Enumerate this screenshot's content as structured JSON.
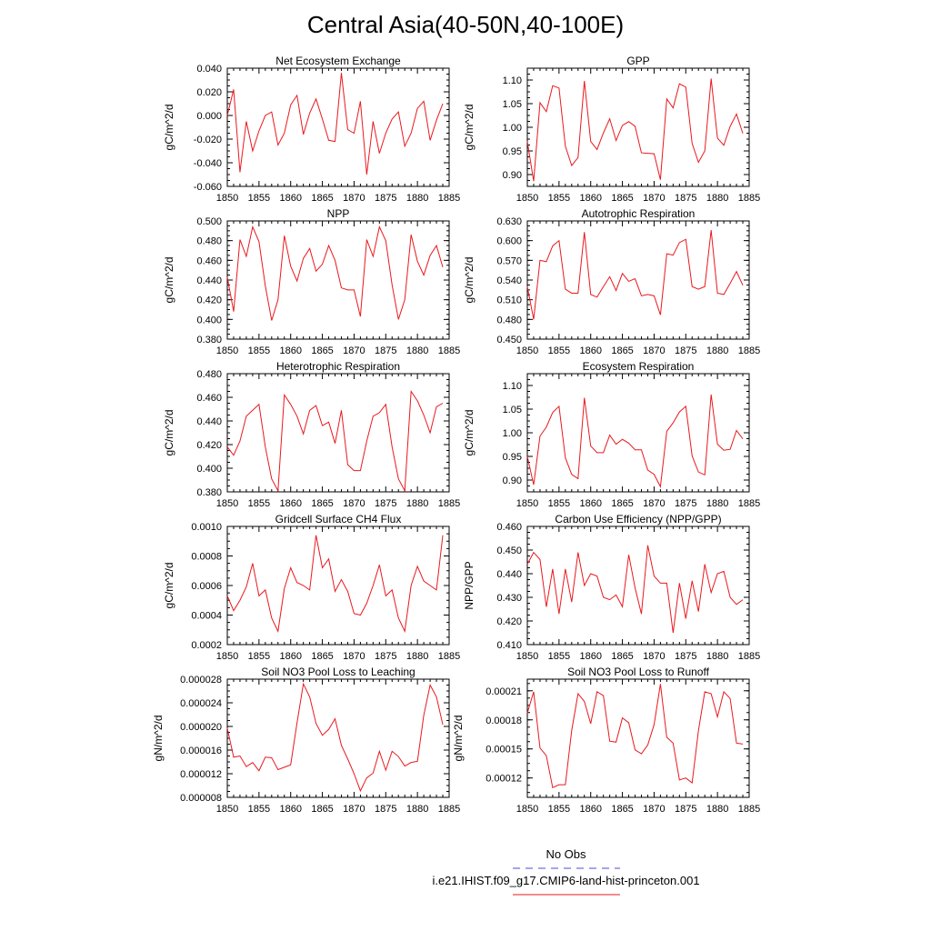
{
  "figure": {
    "title": "Central Asia(40-50N,40-100E)",
    "line_color": "#e8191e",
    "obs_color": "#4b4be0"
  },
  "legend": {
    "obs_label": "No Obs",
    "model_label": "i.e21.IHIST.f09_g17.CMIP6-land-hist-princeton.001"
  },
  "chart_data": [
    {
      "type": "line",
      "title": "Net Ecosystem Exchange",
      "ylabel": "gC/m^2/d",
      "xlabel": "",
      "xlim": [
        1850,
        1885
      ],
      "ylim": [
        -0.06,
        0.04
      ],
      "yticks": [
        -0.06,
        -0.04,
        -0.02,
        0.0,
        0.02,
        0.04
      ],
      "ytick_labels": [
        "-0.060",
        "-0.040",
        "-0.020",
        "0.000",
        "0.020",
        "0.040"
      ],
      "xticks": [
        1850,
        1855,
        1860,
        1865,
        1870,
        1875,
        1880,
        1885
      ],
      "x": [
        1850,
        1851,
        1852,
        1853,
        1854,
        1855,
        1856,
        1857,
        1858,
        1859,
        1860,
        1861,
        1862,
        1863,
        1864,
        1865,
        1866,
        1867,
        1868,
        1869,
        1870,
        1871,
        1872,
        1873,
        1874,
        1875,
        1876,
        1877,
        1878,
        1879,
        1880,
        1881,
        1882,
        1883,
        1884
      ],
      "series": [
        {
          "values": [
            0.0,
            0.022,
            -0.048,
            -0.005,
            -0.03,
            -0.013,
            0.0,
            0.003,
            -0.025,
            -0.015,
            0.009,
            0.017,
            -0.016,
            0.002,
            0.014,
            -0.003,
            -0.021,
            -0.022,
            0.036,
            -0.012,
            -0.015,
            0.012,
            -0.05,
            -0.005,
            -0.032,
            -0.015,
            -0.003,
            0.003,
            -0.026,
            -0.015,
            0.006,
            0.012,
            -0.021,
            -0.004,
            0.01
          ]
        }
      ]
    },
    {
      "type": "line",
      "title": "GPP",
      "ylabel": "gC/m^2/d",
      "xlabel": "",
      "xlim": [
        1850,
        1885
      ],
      "ylim": [
        0.875,
        1.125
      ],
      "yticks": [
        0.9,
        0.95,
        1.0,
        1.05,
        1.1
      ],
      "ytick_labels": [
        "0.90",
        "0.95",
        "1.00",
        "1.05",
        "1.10"
      ],
      "xticks": [
        1850,
        1855,
        1860,
        1865,
        1870,
        1875,
        1880,
        1885
      ],
      "x": [
        1850,
        1851,
        1852,
        1853,
        1854,
        1855,
        1856,
        1857,
        1858,
        1859,
        1860,
        1861,
        1862,
        1863,
        1864,
        1865,
        1866,
        1867,
        1868,
        1869,
        1870,
        1871,
        1872,
        1873,
        1874,
        1875,
        1876,
        1877,
        1878,
        1879,
        1880,
        1881,
        1882,
        1883,
        1884
      ],
      "series": [
        {
          "values": [
            0.97,
            0.886,
            1.052,
            1.033,
            1.088,
            1.083,
            0.96,
            0.919,
            0.936,
            1.098,
            0.97,
            0.953,
            0.988,
            1.018,
            0.972,
            1.004,
            1.012,
            1.002,
            0.946,
            0.945,
            0.944,
            0.889,
            1.06,
            1.041,
            1.092,
            1.085,
            0.966,
            0.926,
            0.95,
            1.103,
            0.977,
            0.962,
            1.002,
            1.028,
            0.987
          ]
        }
      ]
    },
    {
      "type": "line",
      "title": "NPP",
      "ylabel": "gC/m^2/d",
      "xlabel": "",
      "xlim": [
        1850,
        1885
      ],
      "ylim": [
        0.38,
        0.5
      ],
      "yticks": [
        0.38,
        0.4,
        0.42,
        0.44,
        0.46,
        0.48,
        0.5
      ],
      "ytick_labels": [
        "0.380",
        "0.400",
        "0.420",
        "0.440",
        "0.460",
        "0.480",
        "0.500"
      ],
      "xticks": [
        1850,
        1855,
        1860,
        1865,
        1870,
        1875,
        1880,
        1885
      ],
      "x": [
        1850,
        1851,
        1852,
        1853,
        1854,
        1855,
        1856,
        1857,
        1858,
        1859,
        1860,
        1861,
        1862,
        1863,
        1864,
        1865,
        1866,
        1867,
        1868,
        1869,
        1870,
        1871,
        1872,
        1873,
        1874,
        1875,
        1876,
        1877,
        1878,
        1879,
        1880,
        1881,
        1882,
        1883,
        1884
      ],
      "series": [
        {
          "values": [
            0.443,
            0.408,
            0.481,
            0.464,
            0.494,
            0.479,
            0.434,
            0.399,
            0.42,
            0.485,
            0.454,
            0.439,
            0.462,
            0.472,
            0.449,
            0.456,
            0.475,
            0.46,
            0.432,
            0.43,
            0.43,
            0.403,
            0.481,
            0.464,
            0.494,
            0.48,
            0.435,
            0.4,
            0.42,
            0.486,
            0.459,
            0.445,
            0.465,
            0.475,
            0.453
          ]
        }
      ]
    },
    {
      "type": "line",
      "title": "Autotrophic Respiration",
      "ylabel": "gC/m^2/d",
      "xlabel": "",
      "xlim": [
        1850,
        1885
      ],
      "ylim": [
        0.45,
        0.63
      ],
      "yticks": [
        0.45,
        0.48,
        0.51,
        0.54,
        0.57,
        0.6,
        0.63
      ],
      "ytick_labels": [
        "0.450",
        "0.480",
        "0.510",
        "0.540",
        "0.570",
        "0.600",
        "0.630"
      ],
      "xticks": [
        1850,
        1855,
        1860,
        1865,
        1870,
        1875,
        1880,
        1885
      ],
      "x": [
        1850,
        1851,
        1852,
        1853,
        1854,
        1855,
        1856,
        1857,
        1858,
        1859,
        1860,
        1861,
        1862,
        1863,
        1864,
        1865,
        1866,
        1867,
        1868,
        1869,
        1870,
        1871,
        1872,
        1873,
        1874,
        1875,
        1876,
        1877,
        1878,
        1879,
        1880,
        1881,
        1882,
        1883,
        1884
      ],
      "series": [
        {
          "values": [
            0.53,
            0.48,
            0.57,
            0.568,
            0.592,
            0.6,
            0.526,
            0.52,
            0.52,
            0.613,
            0.518,
            0.514,
            0.53,
            0.545,
            0.524,
            0.55,
            0.538,
            0.542,
            0.516,
            0.518,
            0.516,
            0.487,
            0.58,
            0.578,
            0.597,
            0.602,
            0.53,
            0.526,
            0.53,
            0.616,
            0.52,
            0.518,
            0.535,
            0.553,
            0.532
          ]
        }
      ]
    },
    {
      "type": "line",
      "title": "Heterotrophic Respiration",
      "ylabel": "gC/m^2/d",
      "xlabel": "",
      "xlim": [
        1850,
        1885
      ],
      "ylim": [
        0.38,
        0.48
      ],
      "yticks": [
        0.38,
        0.4,
        0.42,
        0.44,
        0.46,
        0.48
      ],
      "ytick_labels": [
        "0.380",
        "0.400",
        "0.420",
        "0.440",
        "0.460",
        "0.480"
      ],
      "xticks": [
        1850,
        1855,
        1860,
        1865,
        1870,
        1875,
        1880,
        1885
      ],
      "x": [
        1850,
        1851,
        1852,
        1853,
        1854,
        1855,
        1856,
        1857,
        1858,
        1859,
        1860,
        1861,
        1862,
        1863,
        1864,
        1865,
        1866,
        1867,
        1868,
        1869,
        1870,
        1871,
        1872,
        1873,
        1874,
        1875,
        1876,
        1877,
        1878,
        1879,
        1880,
        1881,
        1882,
        1883,
        1884
      ],
      "series": [
        {
          "values": [
            0.418,
            0.411,
            0.423,
            0.444,
            0.449,
            0.454,
            0.418,
            0.391,
            0.381,
            0.462,
            0.454,
            0.444,
            0.429,
            0.449,
            0.453,
            0.436,
            0.439,
            0.421,
            0.449,
            0.403,
            0.398,
            0.398,
            0.423,
            0.444,
            0.447,
            0.454,
            0.418,
            0.391,
            0.381,
            0.465,
            0.457,
            0.445,
            0.43,
            0.452,
            0.455
          ]
        }
      ]
    },
    {
      "type": "line",
      "title": "Ecosystem Respiration",
      "ylabel": "gC/m^2/d",
      "xlabel": "",
      "xlim": [
        1850,
        1885
      ],
      "ylim": [
        0.875,
        1.125
      ],
      "yticks": [
        0.9,
        0.95,
        1.0,
        1.05,
        1.1
      ],
      "ytick_labels": [
        "0.90",
        "0.95",
        "1.00",
        "1.05",
        "1.10"
      ],
      "xticks": [
        1850,
        1855,
        1860,
        1865,
        1870,
        1875,
        1880,
        1885
      ],
      "x": [
        1850,
        1851,
        1852,
        1853,
        1854,
        1855,
        1856,
        1857,
        1858,
        1859,
        1860,
        1861,
        1862,
        1863,
        1864,
        1865,
        1866,
        1867,
        1868,
        1869,
        1870,
        1871,
        1872,
        1873,
        1874,
        1875,
        1876,
        1877,
        1878,
        1879,
        1880,
        1881,
        1882,
        1883,
        1884
      ],
      "series": [
        {
          "values": [
            0.95,
            0.89,
            0.993,
            1.012,
            1.043,
            1.056,
            0.947,
            0.912,
            0.903,
            1.074,
            0.972,
            0.958,
            0.958,
            0.995,
            0.976,
            0.986,
            0.978,
            0.964,
            0.964,
            0.921,
            0.912,
            0.886,
            1.003,
            1.021,
            1.044,
            1.056,
            0.951,
            0.917,
            0.911,
            1.081,
            0.976,
            0.963,
            0.965,
            1.005,
            0.987
          ]
        }
      ]
    },
    {
      "type": "line",
      "title": "Gridcell Surface CH4 Flux",
      "ylabel": "gC/m^2/d",
      "xlabel": "",
      "xlim": [
        1850,
        1885
      ],
      "ylim": [
        0.0002,
        0.001
      ],
      "yticks": [
        0.0002,
        0.0004,
        0.0006,
        0.0008,
        0.001
      ],
      "ytick_labels": [
        "0.0002",
        "0.0004",
        "0.0006",
        "0.0008",
        "0.0010"
      ],
      "xticks": [
        1850,
        1855,
        1860,
        1865,
        1870,
        1875,
        1880,
        1885
      ],
      "x": [
        1850,
        1851,
        1852,
        1853,
        1854,
        1855,
        1856,
        1857,
        1858,
        1859,
        1860,
        1861,
        1862,
        1863,
        1864,
        1865,
        1866,
        1867,
        1868,
        1869,
        1870,
        1871,
        1872,
        1873,
        1874,
        1875,
        1876,
        1877,
        1878,
        1879,
        1880,
        1881,
        1882,
        1883,
        1884
      ],
      "series": [
        {
          "values": [
            0.00053,
            0.00043,
            0.0005,
            0.00059,
            0.00075,
            0.00053,
            0.00057,
            0.00038,
            0.00029,
            0.00058,
            0.00072,
            0.00062,
            0.0006,
            0.00057,
            0.00094,
            0.00072,
            0.00078,
            0.00056,
            0.00064,
            0.00056,
            0.00041,
            0.0004,
            0.00048,
            0.0006,
            0.00074,
            0.00053,
            0.00057,
            0.00038,
            0.00029,
            0.0006,
            0.00073,
            0.00063,
            0.0006,
            0.00057,
            0.00094
          ]
        }
      ]
    },
    {
      "type": "line",
      "title": "Carbon Use Efficiency (NPP/GPP)",
      "ylabel": "NPP/GPP",
      "xlabel": "",
      "xlim": [
        1850,
        1885
      ],
      "ylim": [
        0.41,
        0.46
      ],
      "yticks": [
        0.41,
        0.42,
        0.43,
        0.44,
        0.45,
        0.46
      ],
      "ytick_labels": [
        "0.410",
        "0.420",
        "0.430",
        "0.440",
        "0.450",
        "0.460"
      ],
      "xticks": [
        1850,
        1855,
        1860,
        1865,
        1870,
        1875,
        1880,
        1885
      ],
      "x": [
        1850,
        1851,
        1852,
        1853,
        1854,
        1855,
        1856,
        1857,
        1858,
        1859,
        1860,
        1861,
        1862,
        1863,
        1864,
        1865,
        1866,
        1867,
        1868,
        1869,
        1870,
        1871,
        1872,
        1873,
        1874,
        1875,
        1876,
        1877,
        1878,
        1879,
        1880,
        1881,
        1882,
        1883,
        1884
      ],
      "series": [
        {
          "values": [
            0.444,
            0.449,
            0.446,
            0.426,
            0.442,
            0.423,
            0.442,
            0.428,
            0.449,
            0.435,
            0.44,
            0.439,
            0.43,
            0.429,
            0.431,
            0.426,
            0.448,
            0.434,
            0.423,
            0.452,
            0.439,
            0.436,
            0.436,
            0.415,
            0.436,
            0.421,
            0.437,
            0.424,
            0.444,
            0.432,
            0.44,
            0.441,
            0.43,
            0.427,
            0.429
          ]
        }
      ]
    },
    {
      "type": "line",
      "title": "Soil NO3 Pool Loss to Leaching",
      "ylabel": "gN/m^2/d",
      "xlabel": "",
      "xlim": [
        1850,
        1885
      ],
      "ylim": [
        8e-06,
        2.8e-05
      ],
      "yticks": [
        8e-06,
        1.2e-05,
        1.6e-05,
        2e-05,
        2.4e-05,
        2.8e-05
      ],
      "ytick_labels": [
        "0.000008",
        "0.000012",
        "0.000016",
        "0.000020",
        "0.000024",
        "0.000028"
      ],
      "xticks": [
        1850,
        1855,
        1860,
        1865,
        1870,
        1875,
        1880,
        1885
      ],
      "x": [
        1850,
        1851,
        1852,
        1853,
        1854,
        1855,
        1856,
        1857,
        1858,
        1859,
        1860,
        1861,
        1862,
        1863,
        1864,
        1865,
        1866,
        1867,
        1868,
        1869,
        1870,
        1871,
        1872,
        1873,
        1874,
        1875,
        1876,
        1877,
        1878,
        1879,
        1880,
        1881,
        1882,
        1883,
        1884
      ],
      "series": [
        {
          "values": [
            1.97e-05,
            1.48e-05,
            1.5e-05,
            1.32e-05,
            1.39e-05,
            1.25e-05,
            1.48e-05,
            1.47e-05,
            1.27e-05,
            1.31e-05,
            1.35e-05,
            2.06e-05,
            2.72e-05,
            2.5e-05,
            2.05e-05,
            1.85e-05,
            1.95e-05,
            2.13e-05,
            1.68e-05,
            1.45e-05,
            1.2e-05,
            9.1e-06,
            1.13e-05,
            1.21e-05,
            1.58e-05,
            1.26e-05,
            1.58e-05,
            1.49e-05,
            1.33e-05,
            1.39e-05,
            1.41e-05,
            2.19e-05,
            2.7e-05,
            2.5e-05,
            2.03e-05
          ]
        }
      ]
    },
    {
      "type": "line",
      "title": "Soil NO3 Pool Loss to Runoff",
      "ylabel": "gN/m^2/d",
      "xlabel": "",
      "xlim": [
        1850,
        1885
      ],
      "ylim": [
        0.0001,
        0.000222
      ],
      "yticks": [
        0.00012,
        0.00015,
        0.00018,
        0.00021
      ],
      "ytick_labels": [
        "0.00012",
        "0.00015",
        "0.00018",
        "0.00021"
      ],
      "xticks": [
        1850,
        1855,
        1860,
        1865,
        1870,
        1875,
        1880,
        1885
      ],
      "x": [
        1850,
        1851,
        1852,
        1853,
        1854,
        1855,
        1856,
        1857,
        1858,
        1859,
        1860,
        1861,
        1862,
        1863,
        1864,
        1865,
        1866,
        1867,
        1868,
        1869,
        1870,
        1871,
        1872,
        1873,
        1874,
        1875,
        1876,
        1877,
        1878,
        1879,
        1880,
        1881,
        1882,
        1883,
        1884
      ],
      "series": [
        {
          "values": [
            0.000187,
            0.000209,
            0.000151,
            0.000143,
            0.00011,
            0.000113,
            0.000113,
            0.000169,
            0.000207,
            0.000199,
            0.000176,
            0.000209,
            0.000205,
            0.000158,
            0.000157,
            0.000182,
            0.000177,
            0.000149,
            0.000145,
            0.000154,
            0.000175,
            0.000217,
            0.000162,
            0.000156,
            0.000118,
            0.00012,
            0.000115,
            0.000169,
            0.000209,
            0.000207,
            0.000183,
            0.000209,
            0.000202,
            0.000156,
            0.000155
          ]
        }
      ]
    }
  ]
}
